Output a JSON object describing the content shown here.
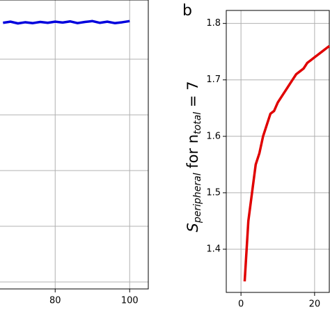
{
  "chart_data": [
    {
      "type": "line",
      "xlim": [
        65,
        105
      ],
      "xticks": [
        80,
        100
      ],
      "ylim": [
        0,
        1
      ],
      "grid": true,
      "series": [
        {
          "color": "#0000dd",
          "x": [
            66,
            68,
            70,
            72,
            74,
            76,
            78,
            80,
            82,
            84,
            86,
            88,
            90,
            92,
            94,
            96,
            98,
            100
          ],
          "values": [
            0.921,
            0.925,
            0.919,
            0.923,
            0.92,
            0.924,
            0.921,
            0.925,
            0.922,
            0.926,
            0.92,
            0.924,
            0.927,
            0.921,
            0.925,
            0.92,
            0.923,
            0.927
          ]
        }
      ]
    },
    {
      "type": "line",
      "panel_label": "b",
      "ylabel": {
        "main": "S",
        "sub1": "peripheral",
        "mid": " for n",
        "sub2": "total",
        "end": " = 7"
      },
      "xlim": [
        -4,
        24
      ],
      "xticks": [
        0,
        20
      ],
      "ylim": [
        1.3235,
        1.823
      ],
      "yticks": [
        1.4,
        1.5,
        1.6,
        1.7,
        1.8
      ],
      "grid": true,
      "series": [
        {
          "color": "#e00000",
          "x": [
            1,
            2,
            3,
            4,
            5,
            6,
            7,
            8,
            9,
            10,
            11,
            12,
            13,
            14,
            15,
            16,
            17,
            18,
            19,
            20,
            21,
            22,
            23,
            24
          ],
          "values": [
            1.343,
            1.45,
            1.5,
            1.55,
            1.57,
            1.6,
            1.62,
            1.64,
            1.645,
            1.66,
            1.67,
            1.68,
            1.69,
            1.7,
            1.71,
            1.715,
            1.72,
            1.73,
            1.735,
            1.74,
            1.745,
            1.75,
            1.755,
            1.76
          ]
        }
      ]
    }
  ]
}
